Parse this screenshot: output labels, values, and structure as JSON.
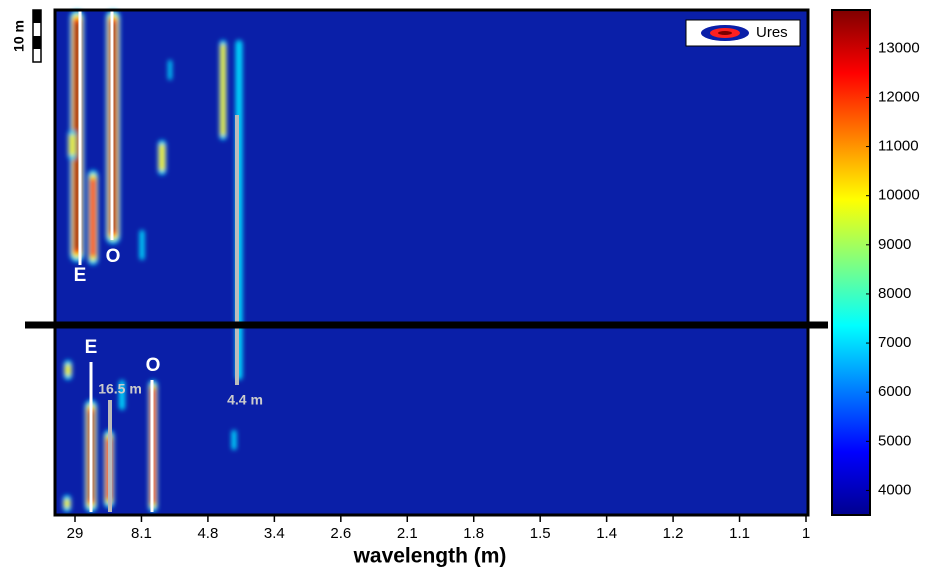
{
  "chart_data": {
    "type": "heatmap",
    "xlabel": "wavelength (m)",
    "categories": [
      "29",
      "8.1",
      "4.8",
      "3.4",
      "2.6",
      "2.1",
      "1.8",
      "1.5",
      "1.4",
      "1.2",
      "1.1",
      "1"
    ],
    "clim": [
      3500,
      13780
    ],
    "cticks": [
      4000,
      5000,
      6000,
      7000,
      8000,
      9000,
      10000,
      11000,
      12000,
      13000
    ],
    "colormap": [
      "#00008f",
      "#0000ff",
      "#0080ff",
      "#00ffff",
      "#80ff80",
      "#ffff00",
      "#ff8000",
      "#ff0000",
      "#800000"
    ],
    "legend": "Ures",
    "scale_label": "10 m",
    "annotations": [
      "E",
      "O",
      "E",
      "O",
      "16.5 m",
      "4.4 m"
    ]
  }
}
